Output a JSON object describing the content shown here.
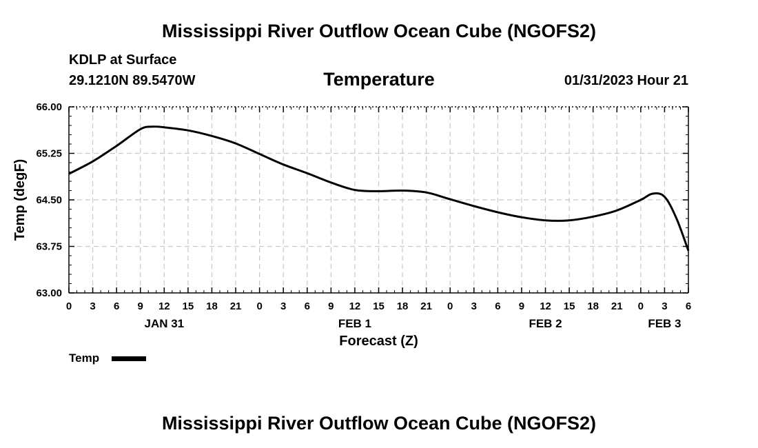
{
  "header": {
    "title": "Mississippi River Outflow Ocean Cube (NGOFS2)",
    "station": "KDLP at Surface",
    "coords": "29.1210N  89.5470W",
    "parameter": "Temperature",
    "run_time": "01/31/2023 Hour 21"
  },
  "footer": {
    "title": "Mississippi River Outflow Ocean Cube (NGOFS2)"
  },
  "chart_data": {
    "type": "line",
    "title": "Temperature",
    "xlabel": "Forecast (Z)",
    "ylabel": "Temp (degF)",
    "ylim": [
      63.0,
      66.0
    ],
    "yticks": [
      "63.00",
      "63.75",
      "64.50",
      "65.25",
      "66.00"
    ],
    "x_unit": "hours from 01/31/2023 00Z",
    "xlim": [
      0,
      78
    ],
    "xticks": [
      "0",
      "3",
      "6",
      "9",
      "12",
      "15",
      "18",
      "21",
      "0",
      "3",
      "6",
      "9",
      "12",
      "15",
      "18",
      "21",
      "0",
      "3",
      "6",
      "9",
      "12",
      "15",
      "18",
      "21",
      "0",
      "3",
      "6"
    ],
    "day_labels": [
      {
        "hour": 12,
        "label": "JAN 31"
      },
      {
        "hour": 36,
        "label": "FEB 1"
      },
      {
        "hour": 60,
        "label": "FEB 2"
      },
      {
        "hour": 75,
        "label": "FEB 3"
      }
    ],
    "grid": true,
    "legend": "bottom-left",
    "series": [
      {
        "name": "Temp",
        "color": "#000000",
        "x": [
          0,
          3,
          6,
          9,
          10.5,
          12,
          15,
          18,
          21,
          24,
          27,
          30,
          33,
          36,
          39,
          42,
          45,
          48,
          51,
          54,
          57,
          60,
          63,
          66,
          69,
          72,
          73.5,
          75,
          76.5,
          78
        ],
        "values": [
          64.92,
          65.12,
          65.37,
          65.64,
          65.68,
          65.67,
          65.62,
          65.53,
          65.41,
          65.24,
          65.07,
          64.93,
          64.78,
          64.66,
          64.64,
          64.65,
          64.62,
          64.51,
          64.4,
          64.3,
          64.22,
          64.17,
          64.17,
          64.23,
          64.33,
          64.5,
          64.6,
          64.55,
          64.2,
          63.68
        ]
      }
    ]
  }
}
